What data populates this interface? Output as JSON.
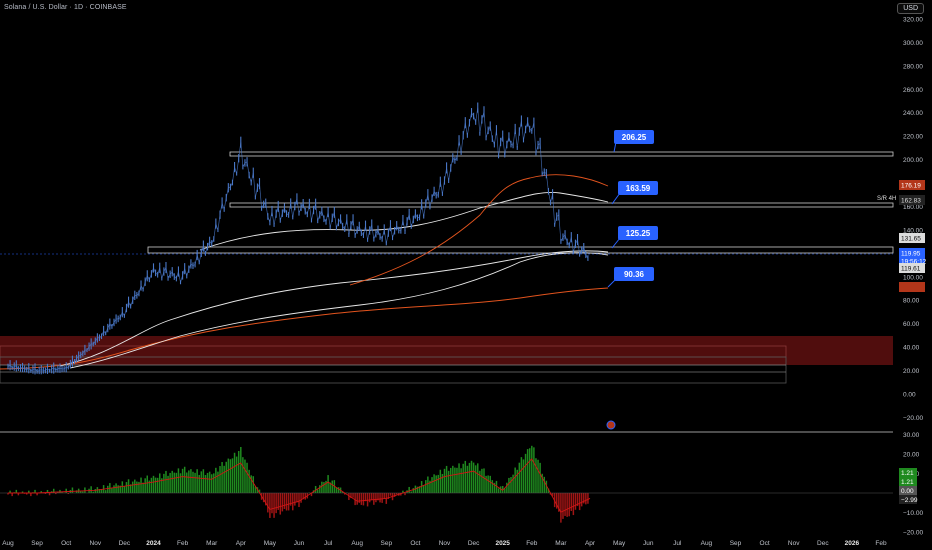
{
  "header": {
    "title": "Solana / U.S. Dollar · 1D · COINBASE",
    "currency": "USD"
  },
  "colors": {
    "background": "#000000",
    "candles": "#4a78c8",
    "ema_orange": "#e3541e",
    "ma_white": "#e8e8e8",
    "resistance_zone": "#6b1212",
    "callout": "#2962ff",
    "osc_positive": "#1f8a1f",
    "osc_negative": "#a01515",
    "osc_line": "#d11515"
  },
  "price_axis": {
    "ticks": [
      "320.00",
      "300.00",
      "280.00",
      "260.00",
      "240.00",
      "220.00",
      "200.00",
      "180.00",
      "160.00",
      "140.00",
      "120.00",
      "100.00",
      "80.00",
      "60.00",
      "40.00",
      "20.00",
      "0.00",
      "−20.00"
    ],
    "badges": {
      "orange_top": "176.19",
      "sr_label": "S/R 4H",
      "sr_value": "162.83",
      "white_a": "131.65",
      "price": "119.95",
      "countdown": "19:56:12",
      "white_b": "119.61",
      "orange_low": "90.36"
    }
  },
  "callouts": [
    {
      "label": "206.25"
    },
    {
      "label": "163.59"
    },
    {
      "label": "125.25"
    },
    {
      "label": "90.36"
    }
  ],
  "time_axis": {
    "labels": [
      "Aug",
      "Sep",
      "Oct",
      "Nov",
      "Dec",
      "2024",
      "Feb",
      "Mar",
      "Apr",
      "May",
      "Jun",
      "Jul",
      "Aug",
      "Sep",
      "Oct",
      "Nov",
      "Dec",
      "2025",
      "Feb",
      "Mar",
      "Apr",
      "May",
      "Jun",
      "Jul",
      "Aug",
      "Sep",
      "Oct",
      "Nov",
      "Dec",
      "2026",
      "Feb"
    ]
  },
  "oscillator_axis": {
    "ticks": [
      "30.00",
      "20.00",
      "10.00",
      "0.00",
      "−10.00",
      "−20.00"
    ],
    "badges": {
      "v1": "1.21",
      "v2": "1.21",
      "v3": "0.00",
      "v4": "−2.99"
    }
  },
  "chart_data": {
    "type": "line",
    "title": "Solana / U.S. Dollar · 1D · COINBASE",
    "xlabel": "",
    "ylabel": "",
    "ylim": [
      -25,
      325
    ],
    "x": [
      "2023-08",
      "2023-09",
      "2023-10",
      "2023-11",
      "2023-12",
      "2024-01",
      "2024-02",
      "2024-03",
      "2024-04",
      "2024-05",
      "2024-06",
      "2024-07",
      "2024-08",
      "2024-09",
      "2024-10",
      "2024-11",
      "2024-12",
      "2025-01",
      "2025-02",
      "2025-03",
      "2025-04"
    ],
    "series": [
      {
        "values": [
          24,
          20,
          22,
          45,
          70,
          105,
          100,
          130,
          205,
          150,
          160,
          150,
          140,
          135,
          150,
          180,
          240,
          210,
          230,
          135,
          118
        ]
      }
    ],
    "levels": [
      206.25,
      163.59,
      125.25,
      90.36
    ],
    "oscillator": {
      "ylim": [
        -22,
        32
      ],
      "values": [
        0,
        0,
        1,
        2,
        5,
        8,
        12,
        10,
        22,
        -12,
        -6,
        8,
        -6,
        -4,
        3,
        12,
        16,
        2,
        25,
        -14,
        -4
      ]
    }
  }
}
